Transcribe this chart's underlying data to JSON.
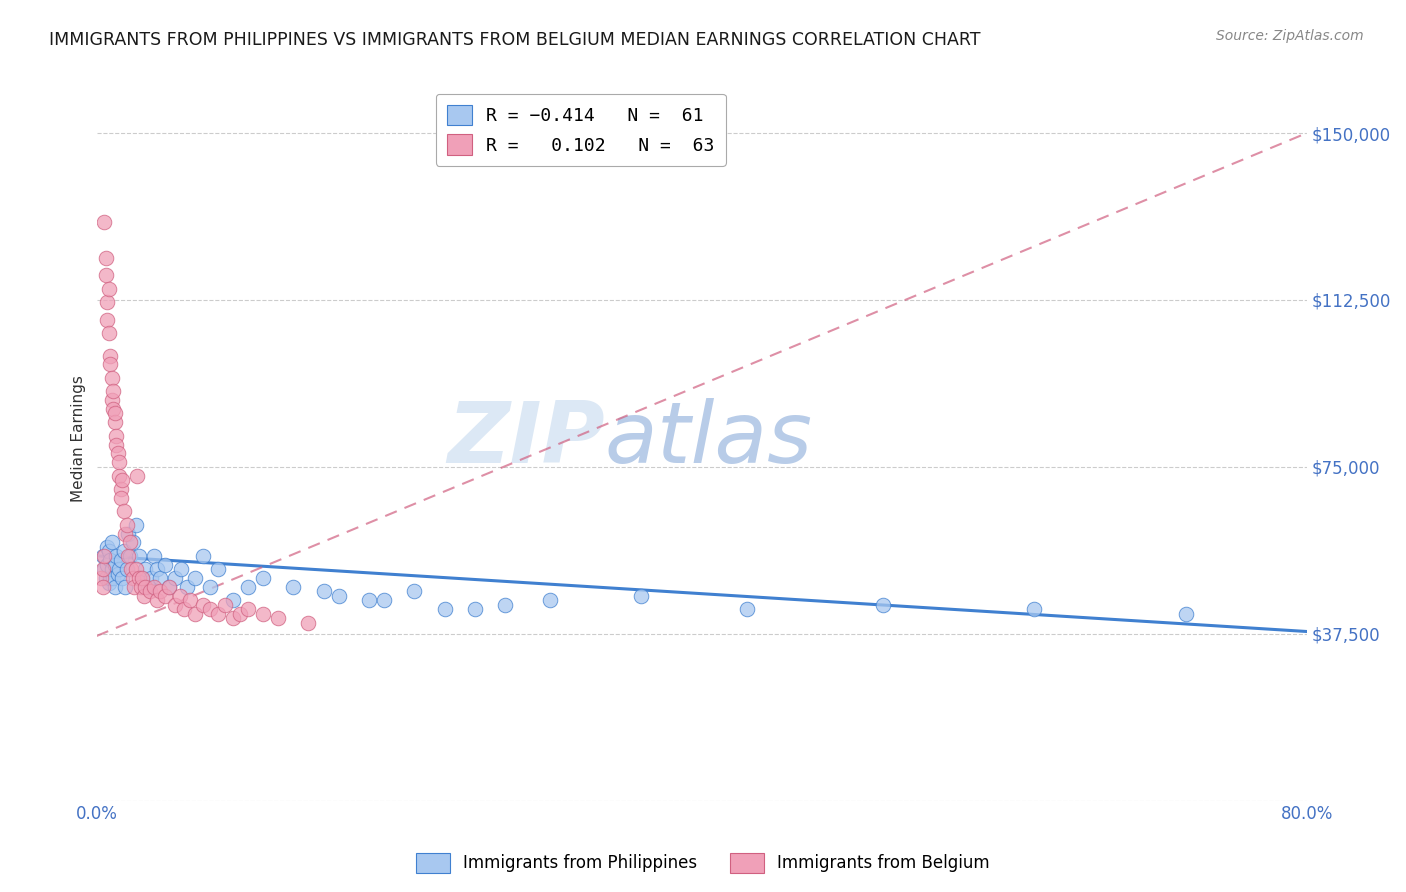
{
  "title": "IMMIGRANTS FROM PHILIPPINES VS IMMIGRANTS FROM BELGIUM MEDIAN EARNINGS CORRELATION CHART",
  "source": "Source: ZipAtlas.com",
  "ylabel": "Median Earnings",
  "watermark_zip": "ZIP",
  "watermark_atlas": "atlas",
  "xlim": [
    0.0,
    0.8
  ],
  "ylim": [
    0,
    162500
  ],
  "yticks": [
    0,
    37500,
    75000,
    112500,
    150000
  ],
  "ytick_labels": [
    "",
    "$37,500",
    "$75,000",
    "$112,500",
    "$150,000"
  ],
  "xticks": [
    0.0,
    0.1,
    0.2,
    0.3,
    0.4,
    0.5,
    0.6,
    0.7,
    0.8
  ],
  "xtick_labels_show": [
    "0.0%",
    "",
    "",
    "",
    "",
    "",
    "",
    "",
    "80.0%"
  ],
  "color_philippines": "#a8c8f0",
  "color_belgium": "#f0a0b8",
  "color_trendline_philippines": "#4080d0",
  "color_trendline_belgium": "#d06080",
  "background_color": "#ffffff",
  "title_fontsize": 12.5,
  "axis_label_fontsize": 11,
  "tick_label_fontsize": 12,
  "philippines_x": [
    0.004,
    0.005,
    0.006,
    0.007,
    0.007,
    0.008,
    0.008,
    0.009,
    0.009,
    0.01,
    0.01,
    0.011,
    0.012,
    0.012,
    0.013,
    0.014,
    0.015,
    0.016,
    0.017,
    0.018,
    0.019,
    0.02,
    0.021,
    0.022,
    0.024,
    0.026,
    0.028,
    0.03,
    0.032,
    0.034,
    0.036,
    0.038,
    0.04,
    0.042,
    0.045,
    0.048,
    0.052,
    0.056,
    0.06,
    0.065,
    0.07,
    0.075,
    0.08,
    0.09,
    0.1,
    0.11,
    0.13,
    0.15,
    0.18,
    0.21,
    0.25,
    0.3,
    0.36,
    0.43,
    0.52,
    0.62,
    0.72,
    0.16,
    0.19,
    0.23,
    0.27
  ],
  "philippines_y": [
    55000,
    52000,
    50000,
    53000,
    57000,
    56000,
    49000,
    54000,
    50000,
    58000,
    52000,
    50000,
    53000,
    48000,
    55000,
    51000,
    52000,
    54000,
    50000,
    56000,
    48000,
    52000,
    60000,
    55000,
    58000,
    62000,
    55000,
    50000,
    52000,
    48000,
    50000,
    55000,
    52000,
    50000,
    53000,
    48000,
    50000,
    52000,
    48000,
    50000,
    55000,
    48000,
    52000,
    45000,
    48000,
    50000,
    48000,
    47000,
    45000,
    47000,
    43000,
    45000,
    46000,
    43000,
    44000,
    43000,
    42000,
    46000,
    45000,
    43000,
    44000
  ],
  "belgium_x": [
    0.003,
    0.004,
    0.004,
    0.005,
    0.005,
    0.006,
    0.006,
    0.007,
    0.007,
    0.008,
    0.008,
    0.009,
    0.009,
    0.01,
    0.01,
    0.011,
    0.011,
    0.012,
    0.012,
    0.013,
    0.013,
    0.014,
    0.015,
    0.015,
    0.016,
    0.016,
    0.017,
    0.018,
    0.019,
    0.02,
    0.021,
    0.022,
    0.023,
    0.024,
    0.025,
    0.026,
    0.027,
    0.028,
    0.029,
    0.03,
    0.031,
    0.032,
    0.035,
    0.038,
    0.04,
    0.042,
    0.045,
    0.048,
    0.052,
    0.055,
    0.058,
    0.062,
    0.065,
    0.07,
    0.075,
    0.08,
    0.085,
    0.09,
    0.095,
    0.1,
    0.11,
    0.12,
    0.14
  ],
  "belgium_y": [
    50000,
    52000,
    48000,
    130000,
    55000,
    118000,
    122000,
    112000,
    108000,
    115000,
    105000,
    100000,
    98000,
    95000,
    90000,
    88000,
    92000,
    85000,
    87000,
    82000,
    80000,
    78000,
    76000,
    73000,
    70000,
    68000,
    72000,
    65000,
    60000,
    62000,
    55000,
    58000,
    52000,
    50000,
    48000,
    52000,
    73000,
    50000,
    48000,
    50000,
    46000,
    48000,
    47000,
    48000,
    45000,
    47000,
    46000,
    48000,
    44000,
    46000,
    43000,
    45000,
    42000,
    44000,
    43000,
    42000,
    44000,
    41000,
    42000,
    43000,
    42000,
    41000,
    40000
  ],
  "trendline_belgium_x0": 0.0,
  "trendline_belgium_y0": 37000,
  "trendline_belgium_x1": 0.8,
  "trendline_belgium_y1": 150000,
  "trendline_phil_x0": 0.0,
  "trendline_phil_y0": 55000,
  "trendline_phil_x1": 0.8,
  "trendline_phil_y1": 38000
}
